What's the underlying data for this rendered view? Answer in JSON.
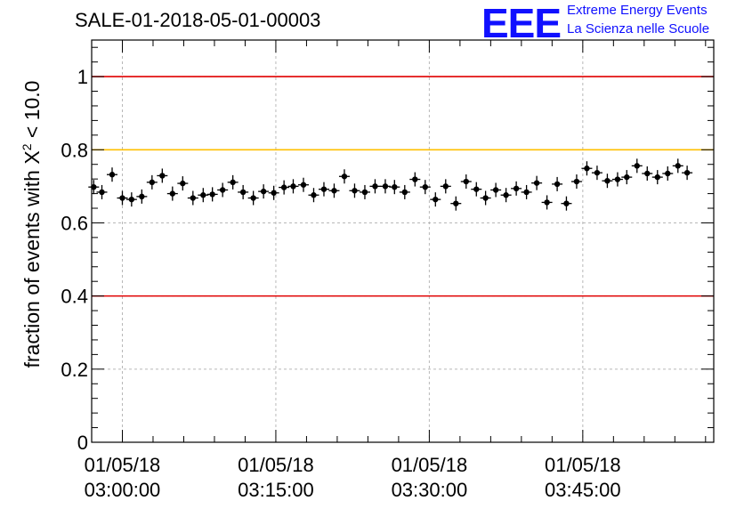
{
  "title": "SALE-01-2018-05-01-00003",
  "logo": {
    "mark": "EEE",
    "line1": "Extreme Energy Events",
    "line2": "La Scienza nelle Scuole"
  },
  "chart_data": {
    "type": "scatter",
    "title": "SALE-01-2018-05-01-00003",
    "ylabel": {
      "prefix": "fraction of events with X",
      "sup": "2",
      "suffix": " < 10.0"
    },
    "xlabel": "",
    "ylim": [
      0,
      1.1
    ],
    "xlim_minutes": [
      -3.0,
      57.8
    ],
    "grid": true,
    "x_unit": "minutes after 01/05/18 03:00:00",
    "y_ticks": [
      "0",
      "0.2",
      "0.4",
      "0.6",
      "0.8",
      "1"
    ],
    "x_ticks": [
      {
        "t": 0,
        "date": "01/05/18",
        "time": "03:00:00"
      },
      {
        "t": 15,
        "date": "01/05/18",
        "time": "03:15:00"
      },
      {
        "t": 30,
        "date": "01/05/18",
        "time": "03:30:00"
      },
      {
        "t": 45,
        "date": "01/05/18",
        "time": "03:45:00"
      }
    ],
    "reference_lines": [
      {
        "y": 1.0,
        "color": "#e00000"
      },
      {
        "y": 0.8,
        "color": "#ffc000"
      },
      {
        "y": 0.4,
        "color": "#e00000"
      }
    ],
    "points": [
      {
        "t": -2.8,
        "y": 0.698
      },
      {
        "t": -2.0,
        "y": 0.684
      },
      {
        "t": -1.0,
        "y": 0.732
      },
      {
        "t": 0.0,
        "y": 0.668
      },
      {
        "t": 0.9,
        "y": 0.664
      },
      {
        "t": 1.9,
        "y": 0.672
      },
      {
        "t": 2.9,
        "y": 0.711
      },
      {
        "t": 3.9,
        "y": 0.729
      },
      {
        "t": 4.9,
        "y": 0.68
      },
      {
        "t": 5.9,
        "y": 0.708
      },
      {
        "t": 6.9,
        "y": 0.668
      },
      {
        "t": 7.9,
        "y": 0.676
      },
      {
        "t": 8.8,
        "y": 0.678
      },
      {
        "t": 9.8,
        "y": 0.69
      },
      {
        "t": 10.8,
        "y": 0.711
      },
      {
        "t": 11.8,
        "y": 0.684
      },
      {
        "t": 12.8,
        "y": 0.668
      },
      {
        "t": 13.8,
        "y": 0.686
      },
      {
        "t": 14.8,
        "y": 0.682
      },
      {
        "t": 15.8,
        "y": 0.697
      },
      {
        "t": 16.7,
        "y": 0.7
      },
      {
        "t": 17.7,
        "y": 0.704
      },
      {
        "t": 18.7,
        "y": 0.676
      },
      {
        "t": 19.7,
        "y": 0.692
      },
      {
        "t": 20.7,
        "y": 0.688
      },
      {
        "t": 21.7,
        "y": 0.727
      },
      {
        "t": 22.7,
        "y": 0.688
      },
      {
        "t": 23.7,
        "y": 0.684
      },
      {
        "t": 24.7,
        "y": 0.7
      },
      {
        "t": 25.7,
        "y": 0.7
      },
      {
        "t": 26.6,
        "y": 0.698
      },
      {
        "t": 27.6,
        "y": 0.684
      },
      {
        "t": 28.6,
        "y": 0.719
      },
      {
        "t": 29.6,
        "y": 0.698
      },
      {
        "t": 30.6,
        "y": 0.664
      },
      {
        "t": 31.6,
        "y": 0.7
      },
      {
        "t": 32.6,
        "y": 0.653
      },
      {
        "t": 33.6,
        "y": 0.713
      },
      {
        "t": 34.6,
        "y": 0.692
      },
      {
        "t": 35.5,
        "y": 0.668
      },
      {
        "t": 36.5,
        "y": 0.69
      },
      {
        "t": 37.5,
        "y": 0.676
      },
      {
        "t": 38.5,
        "y": 0.694
      },
      {
        "t": 39.5,
        "y": 0.684
      },
      {
        "t": 40.5,
        "y": 0.709
      },
      {
        "t": 41.5,
        "y": 0.656
      },
      {
        "t": 42.5,
        "y": 0.706
      },
      {
        "t": 43.4,
        "y": 0.653
      },
      {
        "t": 44.4,
        "y": 0.713
      },
      {
        "t": 45.4,
        "y": 0.749
      },
      {
        "t": 46.4,
        "y": 0.737
      },
      {
        "t": 47.4,
        "y": 0.715
      },
      {
        "t": 48.4,
        "y": 0.719
      },
      {
        "t": 49.3,
        "y": 0.725
      },
      {
        "t": 50.3,
        "y": 0.756
      },
      {
        "t": 51.3,
        "y": 0.735
      },
      {
        "t": 52.3,
        "y": 0.725
      },
      {
        "t": 53.3,
        "y": 0.735
      },
      {
        "t": 54.3,
        "y": 0.756
      },
      {
        "t": 55.2,
        "y": 0.737
      }
    ]
  }
}
